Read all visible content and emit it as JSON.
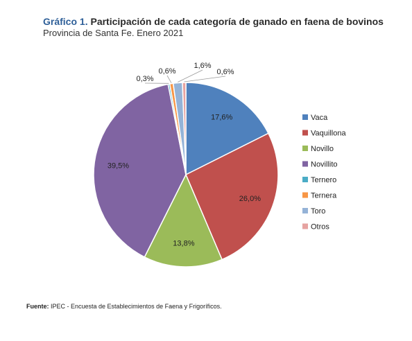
{
  "title": {
    "prefix": "Gráfico 1.",
    "text": "Participación de cada categoría de ganado en faena de bovinos"
  },
  "subtitle": "Provincia de Santa Fe. Enero 2021",
  "source": {
    "label": "Fuente:",
    "text": "IPEC - Encuesta de Establecimientos de Faena y Frigoríficos."
  },
  "chart_data": {
    "type": "pie",
    "start": "12 o'clock, clockwise",
    "legend_position": "right",
    "slices": [
      {
        "name": "Vaca",
        "value": 17.6,
        "label": "17,6%",
        "color": "#4f81bd"
      },
      {
        "name": "Vaquillona",
        "value": 26.0,
        "label": "26,0%",
        "color": "#c0504d"
      },
      {
        "name": "Novillo",
        "value": 13.8,
        "label": "13,8%",
        "color": "#9bbb59"
      },
      {
        "name": "Novillito",
        "value": 39.5,
        "label": "39,5%",
        "color": "#8064a2"
      },
      {
        "name": "Ternero",
        "value": 0.3,
        "label": "0,3%",
        "color": "#4bacc6"
      },
      {
        "name": "Ternera",
        "value": 0.6,
        "label": "0,6%",
        "color": "#f79646"
      },
      {
        "name": "Toro",
        "value": 1.6,
        "label": "1,6%",
        "color": "#95b3d7"
      },
      {
        "name": "Otros",
        "value": 0.6,
        "label": "0,6%",
        "color": "#e6a3a1"
      }
    ]
  }
}
